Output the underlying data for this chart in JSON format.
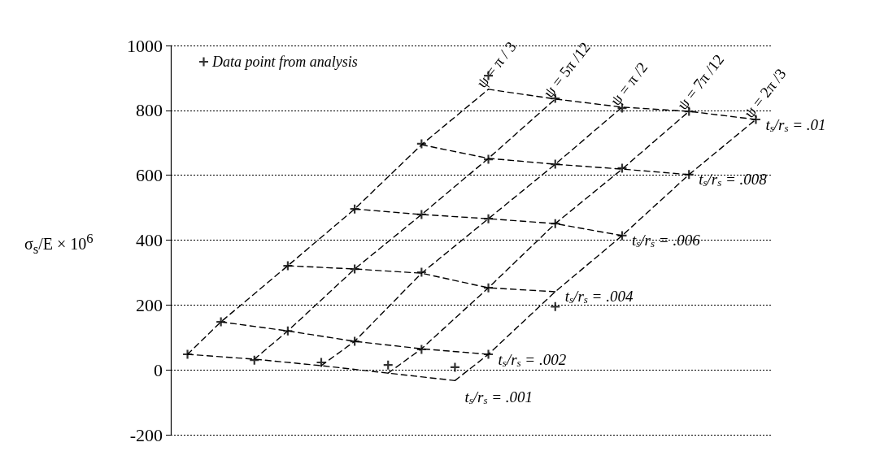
{
  "chart_data": {
    "type": "line",
    "ylabel": "σ$_{s}$/E × 10$^{6}$",
    "categories": [
      null,
      null,
      null,
      null,
      null,
      null,
      null,
      null,
      null,
      null,
      null,
      null,
      null,
      null,
      null,
      null,
      null,
      null
    ],
    "ylim": [
      -200,
      1000
    ],
    "yticks": [
      -200,
      0,
      200,
      400,
      600,
      800,
      1000
    ],
    "grid": "y",
    "legend": "top left",
    "line_style": "dashed",
    "series": [
      {
        "name": "t$_{s}$/r$_{s}$ = .001",
        "color": "#000000",
        "values": [
          48,
          null,
          33,
          null,
          13,
          null,
          -10,
          null,
          -33,
          null,
          null,
          null,
          null,
          null,
          null,
          null,
          null,
          null
        ]
      },
      {
        "name": "t$_{s}$/r$_{s}$ = .002",
        "color": "#000000",
        "values": [
          null,
          148,
          null,
          120,
          null,
          88,
          null,
          65,
          null,
          48,
          null,
          null,
          null,
          null,
          null,
          null,
          null,
          null
        ]
      },
      {
        "name": "t$_{s}$/r$_{s}$ = .004",
        "color": "#000000",
        "values": [
          null,
          null,
          null,
          321,
          null,
          311,
          null,
          298,
          null,
          253,
          null,
          241,
          null,
          null,
          null,
          null,
          null,
          null
        ]
      },
      {
        "name": "t$_{s}$/r$_{s}$ = .006",
        "color": "#000000",
        "values": [
          null,
          null,
          null,
          null,
          null,
          496,
          null,
          479,
          null,
          466,
          null,
          451,
          null,
          414,
          null,
          null,
          null,
          null
        ]
      },
      {
        "name": "t$_{s}$/r$_{s}$ = .008",
        "color": "#000000",
        "values": [
          null,
          null,
          null,
          null,
          null,
          null,
          null,
          694,
          null,
          652,
          null,
          634,
          null,
          619,
          null,
          602,
          null,
          null
        ]
      },
      {
        "name": "t$_{s}$/r$_{s}$ = .01",
        "color": "#000000",
        "values": [
          null,
          null,
          null,
          null,
          null,
          null,
          null,
          null,
          null,
          865,
          null,
          835,
          null,
          810,
          null,
          797,
          null,
          772
        ]
      },
      {
        "name": "ψ = π / 3",
        "color": "#000000",
        "values": [
          48,
          148,
          null,
          321,
          null,
          496,
          null,
          694,
          null,
          865,
          null,
          null,
          null,
          null,
          null,
          null,
          null,
          null
        ]
      },
      {
        "name": "ψ = 5π /12",
        "color": "#000000",
        "values": [
          null,
          null,
          33,
          120,
          null,
          311,
          null,
          479,
          null,
          652,
          null,
          835,
          null,
          null,
          null,
          null,
          null,
          null
        ]
      },
      {
        "name": "ψ = π /2",
        "color": "#000000",
        "values": [
          null,
          null,
          null,
          null,
          13,
          88,
          null,
          298,
          null,
          466,
          null,
          634,
          null,
          810,
          null,
          null,
          null,
          null
        ]
      },
      {
        "name": "ψ = 7π /12",
        "color": "#000000",
        "values": [
          null,
          null,
          null,
          null,
          null,
          null,
          -10,
          65,
          null,
          253,
          null,
          451,
          null,
          619,
          null,
          797,
          null,
          null
        ]
      },
      {
        "name": "ψ = 2π /3",
        "color": "#000000",
        "values": [
          null,
          null,
          null,
          null,
          null,
          null,
          null,
          null,
          -33,
          48,
          null,
          241,
          null,
          414,
          null,
          602,
          null,
          772
        ]
      },
      {
        "type": "scatter",
        "marker": "cross",
        "name": "Data point from analysis",
        "color": "#000000",
        "values": [
          48,
          null,
          30,
          null,
          23,
          null,
          15,
          null,
          8,
          null,
          null,
          null,
          null,
          null,
          null,
          null,
          null,
          null
        ]
      },
      {
        "type": "scatter",
        "marker": "cross",
        "color": "#000000",
        "values": [
          null,
          148,
          null,
          120,
          null,
          88,
          null,
          63,
          null,
          48,
          null,
          null,
          null,
          null,
          null,
          null,
          null,
          null
        ]
      },
      {
        "type": "scatter",
        "marker": "cross",
        "color": "#000000",
        "values": [
          null,
          null,
          null,
          321,
          null,
          311,
          null,
          301,
          null,
          253,
          null,
          195,
          null,
          null,
          null,
          null,
          null,
          null
        ]
      },
      {
        "type": "scatter",
        "marker": "cross",
        "color": "#000000",
        "values": [
          null,
          null,
          null,
          null,
          null,
          496,
          null,
          479,
          null,
          466,
          null,
          451,
          null,
          414,
          null,
          null,
          null,
          null
        ]
      },
      {
        "type": "scatter",
        "marker": "cross",
        "color": "#000000",
        "values": [
          null,
          null,
          null,
          null,
          null,
          null,
          null,
          697,
          null,
          649,
          null,
          634,
          null,
          622,
          null,
          602,
          null,
          null
        ]
      },
      {
        "type": "scatter",
        "marker": "cross",
        "color": "#000000",
        "values": [
          null,
          null,
          null,
          null,
          null,
          null,
          null,
          null,
          null,
          907,
          null,
          837,
          null,
          807,
          null,
          797,
          null,
          772
        ]
      }
    ]
  }
}
